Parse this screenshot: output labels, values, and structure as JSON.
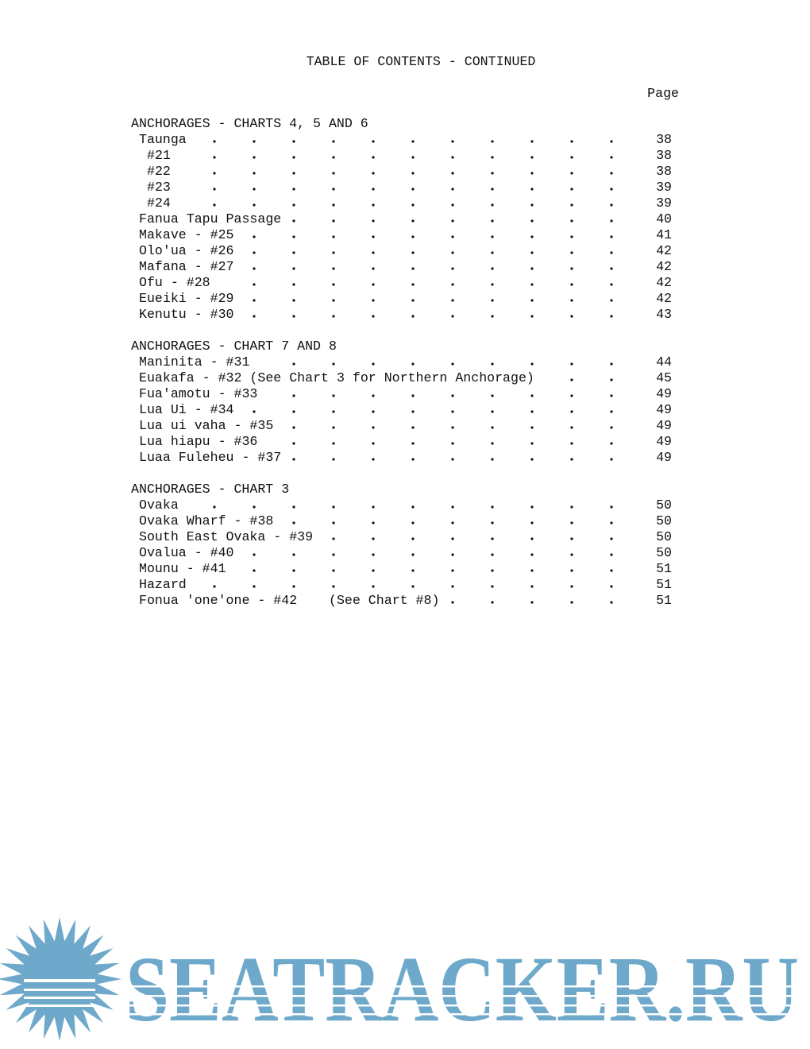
{
  "title": "TABLE OF CONTENTS - CONTINUED",
  "page_heading": "Page",
  "sections": [
    {
      "heading": "ANCHORAGES - CHARTS 4, 5 AND 6",
      "entries": [
        {
          "label": "Taunga",
          "page": 38
        },
        {
          "label": "#21",
          "page": 38
        },
        {
          "label": "#22",
          "page": 38
        },
        {
          "label": "#23",
          "page": 39
        },
        {
          "label": "#24",
          "page": 39
        },
        {
          "label": "Fanua Tapu Passage",
          "page": 40
        },
        {
          "label": "Makave - #25",
          "page": 41
        },
        {
          "label": "Olo'ua - #26",
          "page": 42
        },
        {
          "label": "Mafana - #27",
          "page": 42
        },
        {
          "label": "Ofu - #28",
          "page": 42
        },
        {
          "label": "Eueiki - #29",
          "page": 42
        },
        {
          "label": "Kenutu - #30",
          "page": 43
        }
      ]
    },
    {
      "heading": "ANCHORAGES - CHART 7 AND 8",
      "entries": [
        {
          "label": "Maninita - #31",
          "page": 44
        },
        {
          "label": "Euakafa - #32 (See Chart 3 for Northern Anchorage)",
          "page": 45
        },
        {
          "label": "Fua'amotu - #33",
          "page": 49
        },
        {
          "label": "Lua Ui - #34",
          "page": 49
        },
        {
          "label": "Lua ui vaha - #35",
          "page": 49
        },
        {
          "label": "Lua hiapu - #36",
          "page": 49
        },
        {
          "label": "Luaa Fuleheu - #37",
          "page": 49
        }
      ]
    },
    {
      "heading": "ANCHORAGES - CHART 3",
      "entries": [
        {
          "label": "Ovaka",
          "page": 50
        },
        {
          "label": "Ovaka Wharf - #38",
          "page": 50
        },
        {
          "label": "South East Ovaka - #39",
          "page": 50
        },
        {
          "label": "Ovalua - #40",
          "page": 50
        },
        {
          "label": "Mounu - #41",
          "page": 51
        },
        {
          "label": "Hazard",
          "page": 51
        },
        {
          "label": "Fonua 'one'one - #42    (See Chart #8)",
          "page": 51
        }
      ]
    }
  ],
  "watermark": "SEATRACKER.RU"
}
